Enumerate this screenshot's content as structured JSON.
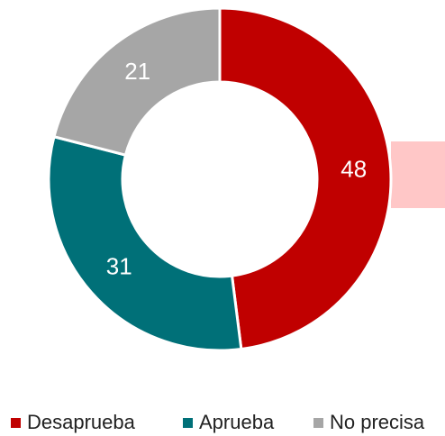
{
  "chart_data": {
    "type": "pie",
    "donut": true,
    "categories": [
      "Desaprueba",
      "Aprueba",
      "No precisa"
    ],
    "values": [
      48,
      31,
      21
    ],
    "colors": [
      "#c00000",
      "#007078",
      "#a6a6a6"
    ],
    "legend": "bottom"
  }
}
